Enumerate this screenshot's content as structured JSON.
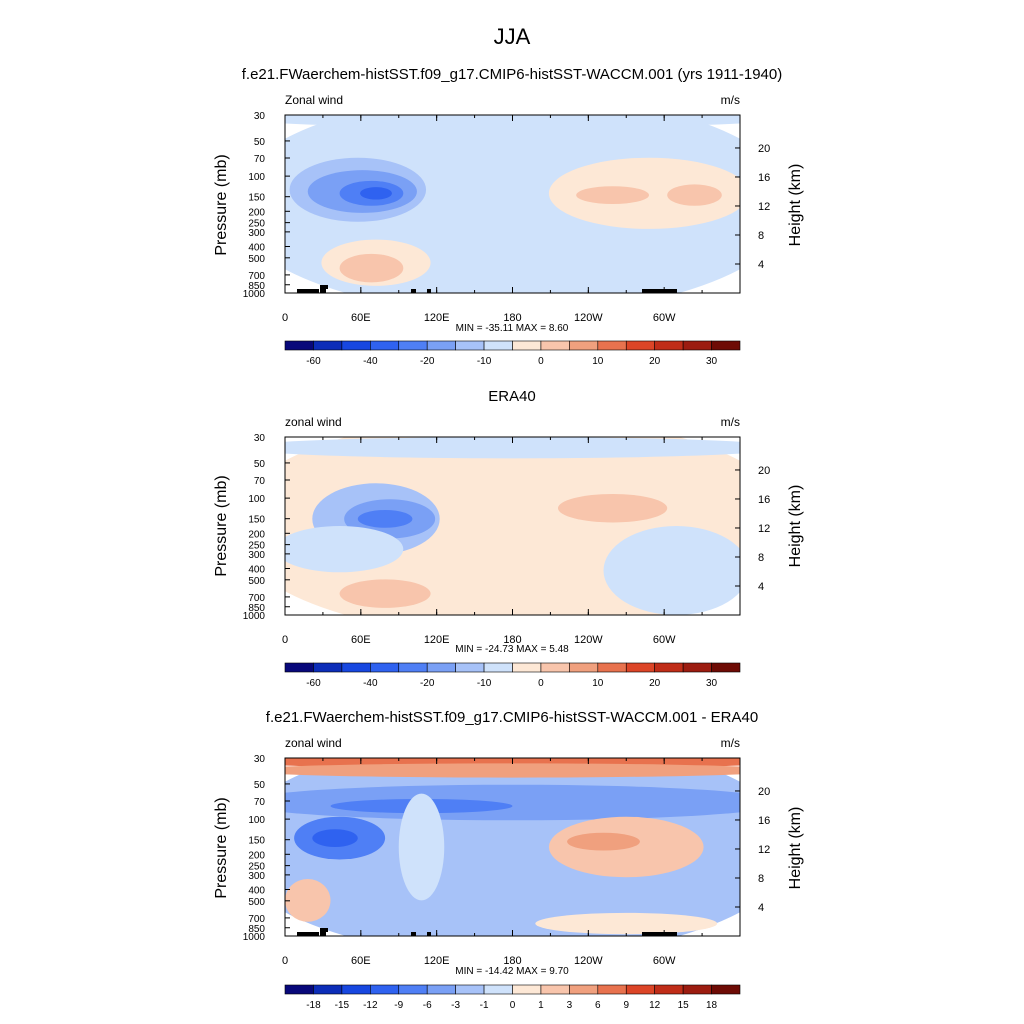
{
  "title": "JJA",
  "chart_data": [
    {
      "type": "heatmap",
      "title": "f.e21.FWaerchem-histSST.f09_g17.CMIP6-histSST-WACCM.001 (yrs 1911-1940)",
      "left_label": "Zonal wind",
      "right_label": "m/s",
      "ylabel": "Pressure (mb)",
      "y2label": "Height (km)",
      "xtick_labels": [
        "0",
        "60E",
        "120E",
        "180",
        "120W",
        "60W"
      ],
      "ytick_labels": [
        "30",
        "50",
        "70",
        "100",
        "150",
        "200",
        "250",
        "300",
        "400",
        "500",
        "700",
        "850",
        "1000"
      ],
      "y2tick_labels": [
        "20",
        "16",
        "12",
        "8",
        "4"
      ],
      "stats": "MIN = -35.11  MAX =   8.60",
      "colorbar_labels": [
        "-60",
        "-40",
        "-20",
        "-10",
        "0",
        "10",
        "20",
        "30"
      ],
      "colors": [
        "#08087a",
        "#0c2db8",
        "#1747e0",
        "#2f62f0",
        "#4f7ff5",
        "#7aa0f5",
        "#a7c2f8",
        "#cfe2fb",
        "#fde8d6",
        "#f8c5ac",
        "#f0a07e",
        "#e8724e",
        "#dc4527",
        "#c02d18",
        "#9c1c10",
        "#6e0b05"
      ],
      "field_levels": [
        {
          "bin": 7,
          "cx": 0.5,
          "cy": 0.5,
          "rx": 0.62,
          "ry": 0.62
        },
        {
          "bin": 7,
          "cx": 0.5,
          "cy": 0.02,
          "rx": 0.6,
          "ry": 0.05
        },
        {
          "bin": 6,
          "cx": 0.16,
          "cy": 0.42,
          "rx": 0.15,
          "ry": 0.18
        },
        {
          "bin": 5,
          "cx": 0.17,
          "cy": 0.43,
          "rx": 0.12,
          "ry": 0.12
        },
        {
          "bin": 4,
          "cx": 0.19,
          "cy": 0.44,
          "rx": 0.07,
          "ry": 0.07
        },
        {
          "bin": 3,
          "cx": 0.2,
          "cy": 0.44,
          "rx": 0.035,
          "ry": 0.035
        },
        {
          "bin": 8,
          "cx": 0.8,
          "cy": 0.44,
          "rx": 0.22,
          "ry": 0.2
        },
        {
          "bin": 9,
          "cx": 0.72,
          "cy": 0.45,
          "rx": 0.08,
          "ry": 0.05
        },
        {
          "bin": 9,
          "cx": 0.9,
          "cy": 0.45,
          "rx": 0.06,
          "ry": 0.06
        },
        {
          "bin": 8,
          "cx": 0.2,
          "cy": 0.83,
          "rx": 0.12,
          "ry": 0.13
        },
        {
          "bin": 9,
          "cx": 0.19,
          "cy": 0.86,
          "rx": 0.07,
          "ry": 0.08
        }
      ]
    },
    {
      "type": "heatmap",
      "title": "ERA40",
      "left_label": "zonal wind",
      "right_label": "m/s",
      "ylabel": "Pressure (mb)",
      "y2label": "Height (km)",
      "xtick_labels": [
        "0",
        "60E",
        "120E",
        "180",
        "120W",
        "60W"
      ],
      "ytick_labels": [
        "30",
        "50",
        "70",
        "100",
        "150",
        "200",
        "250",
        "300",
        "400",
        "500",
        "700",
        "850",
        "1000"
      ],
      "y2tick_labels": [
        "20",
        "16",
        "12",
        "8",
        "4"
      ],
      "stats": "MIN = -24.73  MAX =   5.48",
      "colorbar_labels": [
        "-60",
        "-40",
        "-20",
        "-10",
        "0",
        "10",
        "20",
        "30"
      ],
      "colors": [
        "#08087a",
        "#0c2db8",
        "#1747e0",
        "#2f62f0",
        "#4f7ff5",
        "#7aa0f5",
        "#a7c2f8",
        "#cfe2fb",
        "#fde8d6",
        "#f8c5ac",
        "#f0a07e",
        "#e8724e",
        "#dc4527",
        "#c02d18",
        "#9c1c10",
        "#6e0b05"
      ],
      "field_levels": [
        {
          "bin": 8,
          "cx": 0.5,
          "cy": 0.5,
          "rx": 0.62,
          "ry": 0.62
        },
        {
          "bin": 7,
          "cx": 0.5,
          "cy": 0.06,
          "rx": 0.6,
          "ry": 0.06
        },
        {
          "bin": 6,
          "cx": 0.2,
          "cy": 0.46,
          "rx": 0.14,
          "ry": 0.2
        },
        {
          "bin": 5,
          "cx": 0.23,
          "cy": 0.46,
          "rx": 0.1,
          "ry": 0.11
        },
        {
          "bin": 4,
          "cx": 0.22,
          "cy": 0.46,
          "rx": 0.06,
          "ry": 0.05
        },
        {
          "bin": 7,
          "cx": 0.12,
          "cy": 0.63,
          "rx": 0.14,
          "ry": 0.13
        },
        {
          "bin": 7,
          "cx": 0.86,
          "cy": 0.75,
          "rx": 0.16,
          "ry": 0.25
        },
        {
          "bin": 9,
          "cx": 0.72,
          "cy": 0.4,
          "rx": 0.12,
          "ry": 0.08
        },
        {
          "bin": 9,
          "cx": 0.22,
          "cy": 0.88,
          "rx": 0.1,
          "ry": 0.08
        }
      ]
    },
    {
      "type": "heatmap",
      "title": "f.e21.FWaerchem-histSST.f09_g17.CMIP6-histSST-WACCM.001 - ERA40",
      "left_label": "zonal wind",
      "right_label": "m/s",
      "ylabel": "Pressure (mb)",
      "y2label": "Height (km)",
      "xtick_labels": [
        "0",
        "60E",
        "120E",
        "180",
        "120W",
        "60W"
      ],
      "ytick_labels": [
        "30",
        "50",
        "70",
        "100",
        "150",
        "200",
        "250",
        "300",
        "400",
        "500",
        "700",
        "850",
        "1000"
      ],
      "y2tick_labels": [
        "20",
        "16",
        "12",
        "8",
        "4"
      ],
      "stats": "MIN = -14.42  MAX =   9.70",
      "colorbar_labels": [
        "-18",
        "-15",
        "-12",
        "-9",
        "-6",
        "-3",
        "-1",
        "0",
        "1",
        "3",
        "6",
        "9",
        "12",
        "15",
        "18"
      ],
      "colors": [
        "#08087a",
        "#0c2db8",
        "#1747e0",
        "#2f62f0",
        "#4f7ff5",
        "#7aa0f5",
        "#a7c2f8",
        "#cfe2fb",
        "#fde8d6",
        "#f8c5ac",
        "#f0a07e",
        "#e8724e",
        "#dc4527",
        "#c02d18",
        "#9c1c10",
        "#6e0b05"
      ],
      "field_levels": [
        {
          "bin": 6,
          "cx": 0.5,
          "cy": 0.5,
          "rx": 0.62,
          "ry": 0.62
        },
        {
          "bin": 11,
          "cx": 0.5,
          "cy": 0.02,
          "rx": 0.6,
          "ry": 0.04
        },
        {
          "bin": 10,
          "cx": 0.5,
          "cy": 0.07,
          "rx": 0.6,
          "ry": 0.04
        },
        {
          "bin": 5,
          "cx": 0.5,
          "cy": 0.25,
          "rx": 0.6,
          "ry": 0.1
        },
        {
          "bin": 4,
          "cx": 0.3,
          "cy": 0.27,
          "rx": 0.2,
          "ry": 0.04
        },
        {
          "bin": 4,
          "cx": 0.12,
          "cy": 0.45,
          "rx": 0.1,
          "ry": 0.12
        },
        {
          "bin": 3,
          "cx": 0.11,
          "cy": 0.45,
          "rx": 0.05,
          "ry": 0.05
        },
        {
          "bin": 7,
          "cx": 0.3,
          "cy": 0.5,
          "rx": 0.05,
          "ry": 0.3
        },
        {
          "bin": 9,
          "cx": 0.75,
          "cy": 0.5,
          "rx": 0.17,
          "ry": 0.17
        },
        {
          "bin": 10,
          "cx": 0.7,
          "cy": 0.47,
          "rx": 0.08,
          "ry": 0.05
        },
        {
          "bin": 9,
          "cx": 0.05,
          "cy": 0.8,
          "rx": 0.05,
          "ry": 0.12
        },
        {
          "bin": 8,
          "cx": 0.75,
          "cy": 0.93,
          "rx": 0.2,
          "ry": 0.06
        }
      ]
    }
  ]
}
